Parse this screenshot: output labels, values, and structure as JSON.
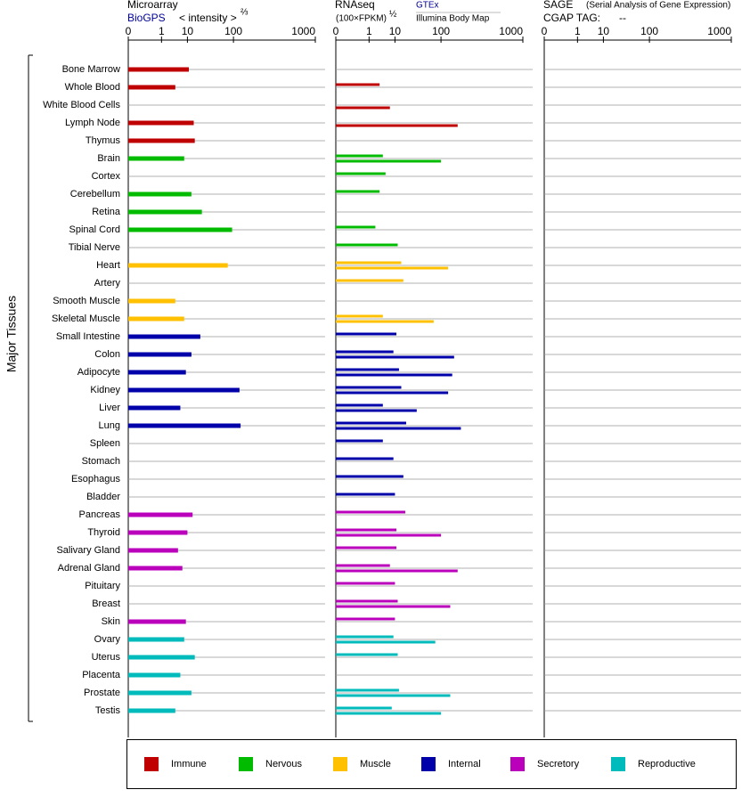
{
  "chart_data": {
    "type": "bar",
    "orientation": "horizontal",
    "y_label": "Major Tissues",
    "categories": [
      "Bone Marrow",
      "Whole Blood",
      "White Blood Cells",
      "Lymph Node",
      "Thymus",
      "Brain",
      "Cortex",
      "Cerebellum",
      "Retina",
      "Spinal Cord",
      "Tibial Nerve",
      "Heart",
      "Artery",
      "Smooth Muscle",
      "Skeletal Muscle",
      "Small Intestine",
      "Colon",
      "Adipocyte",
      "Kidney",
      "Liver",
      "Lung",
      "Spleen",
      "Stomach",
      "Esophagus",
      "Bladder",
      "Pancreas",
      "Thyroid",
      "Salivary Gland",
      "Adrenal Gland",
      "Pituitary",
      "Breast",
      "Skin",
      "Ovary",
      "Uterus",
      "Placenta",
      "Prostate",
      "Testis"
    ],
    "colors": [
      "#c00000",
      "#c00000",
      "#c00000",
      "#c00000",
      "#c00000",
      "#00bb00",
      "#00bb00",
      "#00bb00",
      "#00bb00",
      "#00bb00",
      "#00bb00",
      "#ffc000",
      "#ffc000",
      "#ffc000",
      "#ffc000",
      "#0000aa",
      "#0000aa",
      "#0000aa",
      "#0000aa",
      "#0000aa",
      "#0000aa",
      "#0000aa",
      "#0000aa",
      "#0000aa",
      "#0000aa",
      "#bb00bb",
      "#bb00bb",
      "#bb00bb",
      "#bb00bb",
      "#bb00bb",
      "#bb00bb",
      "#bb00bb",
      "#00bbbb",
      "#00bbbb",
      "#00bbbb",
      "#00bbbb",
      "#00bbbb"
    ],
    "legend": [
      {
        "name": "Immune",
        "color": "#c00000"
      },
      {
        "name": "Nervous",
        "color": "#00bb00"
      },
      {
        "name": "Muscle",
        "color": "#ffc000"
      },
      {
        "name": "Internal",
        "color": "#0000aa"
      },
      {
        "name": "Secretory",
        "color": "#bb00bb"
      },
      {
        "name": "Reproductive",
        "color": "#00bbbb"
      }
    ],
    "panels": [
      {
        "title": "Microarray",
        "unit": "< intensity >",
        "exponent": "⅔",
        "xlim": [
          0,
          1000
        ],
        "xticks": [
          0,
          1,
          10,
          100,
          1000
        ],
        "series": [
          {
            "name": "BioGPS",
            "values": [
              11,
              4,
              null,
              15,
              16,
              8,
              null,
              13,
              24,
              95,
              null,
              80,
              null,
              4,
              8,
              22,
              13,
              9,
              125,
              6,
              130,
              null,
              null,
              null,
              null,
              14,
              10,
              5,
              7,
              null,
              null,
              9,
              8,
              16,
              6,
              13,
              4
            ]
          }
        ]
      },
      {
        "title": "RNAseq",
        "unit": "(100×FPKM)",
        "exponent": "½",
        "xlim": [
          0,
          1000
        ],
        "xticks": [
          0,
          1,
          10,
          100,
          1000
        ],
        "series": [
          {
            "name": "GTEx",
            "values": [
              null,
              3,
              null,
              null,
              null,
              4,
              5,
              3,
              null,
              2,
              12,
              15,
              17,
              null,
              4,
              11,
              9,
              13,
              15,
              4,
              20,
              4,
              9,
              17,
              10,
              19,
              11,
              11,
              7,
              10,
              12,
              10,
              9,
              12,
              null,
              13,
              8
            ]
          },
          {
            "name": "Illumina Body Map",
            "values": [
              null,
              null,
              7,
              180,
              null,
              100,
              null,
              null,
              null,
              null,
              null,
              130,
              null,
              null,
              75,
              null,
              160,
              150,
              130,
              35,
              200,
              null,
              null,
              null,
              null,
              null,
              100,
              null,
              180,
              null,
              140,
              null,
              80,
              null,
              null,
              140,
              100
            ]
          }
        ]
      },
      {
        "title": "SAGE",
        "subtitle": "(Serial Analysis of Gene Expression)",
        "tag_label": "CGAP TAG:",
        "tag_value": "--",
        "xlim": [
          0,
          1000
        ],
        "xticks": [
          0,
          1,
          10,
          100,
          1000
        ],
        "series": []
      }
    ]
  }
}
